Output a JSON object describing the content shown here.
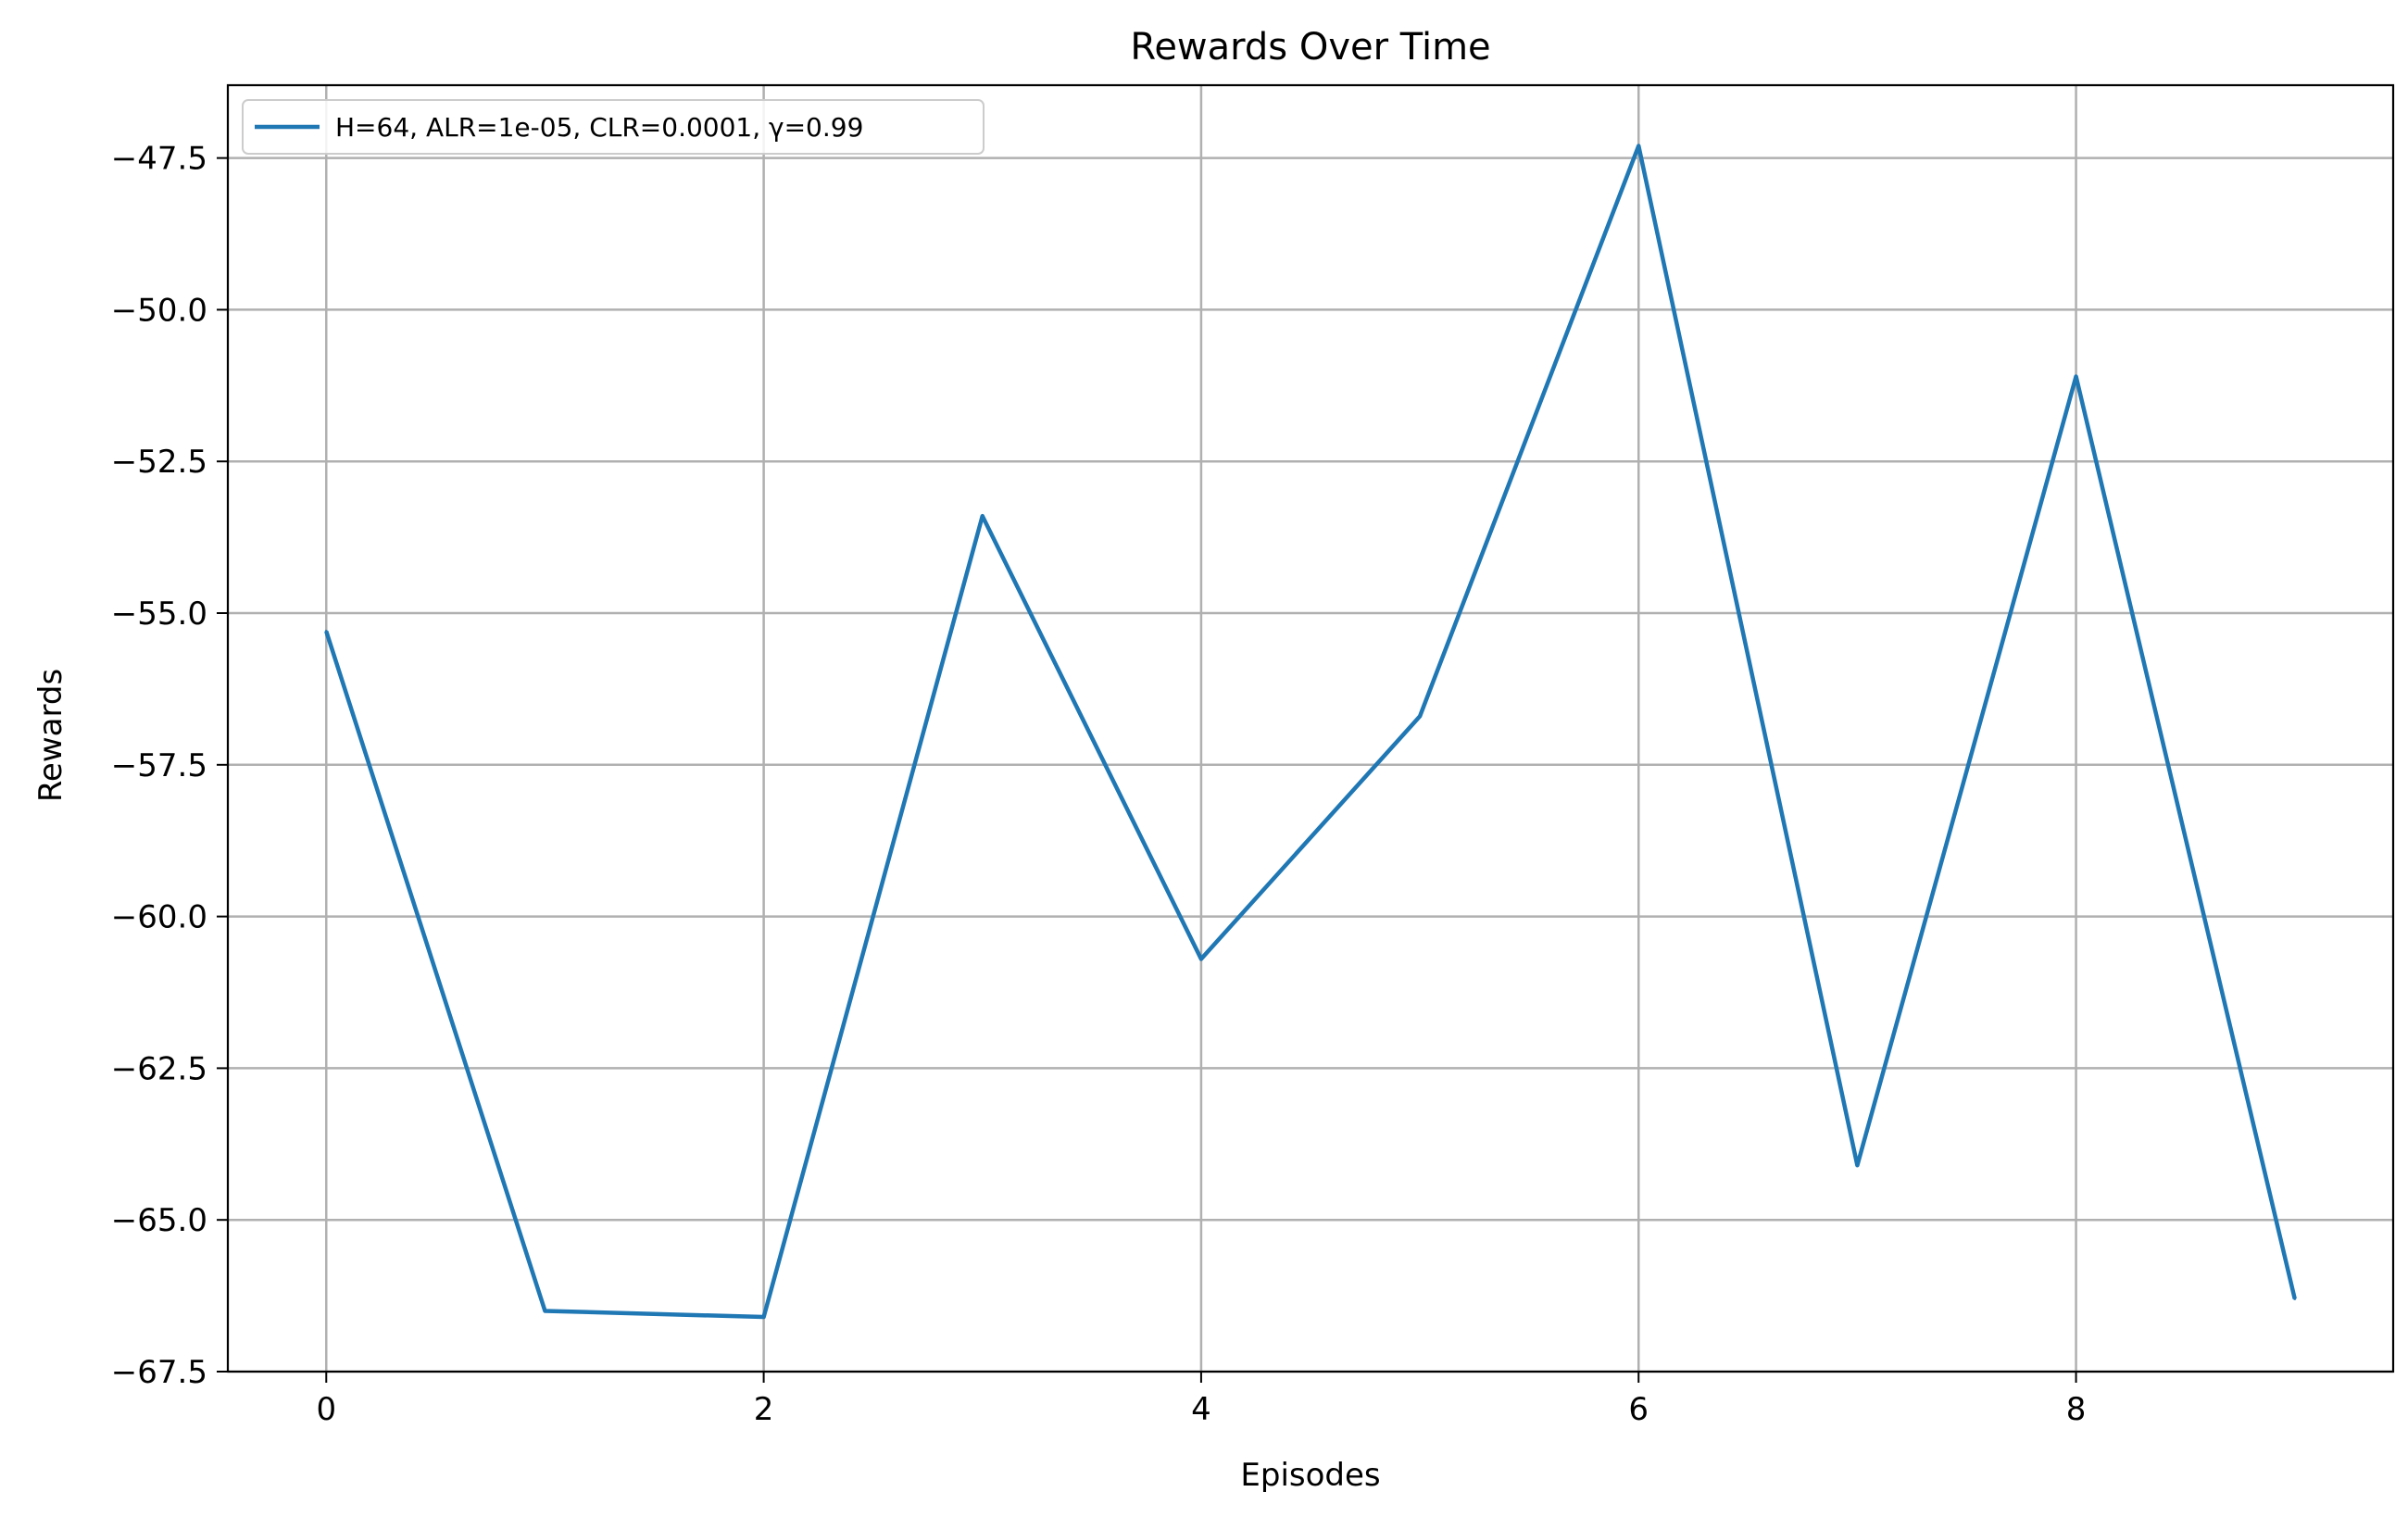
{
  "chart_data": {
    "type": "line",
    "title": "Rewards Over Time",
    "xlabel": "Episodes",
    "ylabel": "Rewards",
    "x": [
      0,
      1,
      2,
      3,
      4,
      5,
      6,
      7,
      8,
      9
    ],
    "series": [
      {
        "name": "H=64, ALR=1e-05, CLR=0.0001, γ=0.99",
        "color": "#1f77b4",
        "values": [
          -55.3,
          -66.5,
          -66.6,
          -53.4,
          -60.7,
          -56.7,
          -47.3,
          -64.1,
          -51.1,
          -66.3
        ]
      }
    ],
    "xlim": [
      -0.45,
      9.45
    ],
    "ylim": [
      -67.5,
      -46.3
    ],
    "xticks": [
      0,
      2,
      4,
      6,
      8
    ],
    "xtick_labels": [
      "0",
      "2",
      "4",
      "6",
      "8"
    ],
    "yticks": [
      -47.5,
      -50.0,
      -52.5,
      -55.0,
      -57.5,
      -60.0,
      -62.5,
      -65.0,
      -67.5
    ],
    "ytick_labels": [
      "−47.5",
      "−50.0",
      "−52.5",
      "−55.0",
      "−57.5",
      "−60.0",
      "−62.5",
      "−65.0",
      "−67.5"
    ],
    "grid": true,
    "legend_position": "top-left"
  }
}
